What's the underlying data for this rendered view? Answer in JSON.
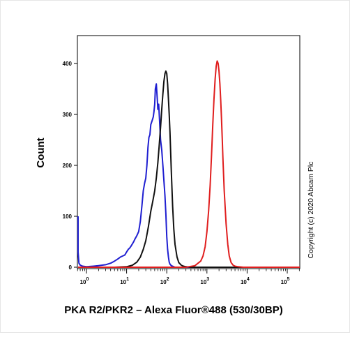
{
  "chart_data": {
    "type": "line",
    "title": "",
    "xlabel": "PKA R2/PKR2 – Alexa Fluor®488 (530/30BP)",
    "ylabel": "Count",
    "x_scale": "log",
    "xlim": [
      0.5,
      250000
    ],
    "ylim": [
      0,
      430
    ],
    "grid": false,
    "legend": "none",
    "x_ticks": [
      {
        "value": 1,
        "base": "10",
        "exp": "0"
      },
      {
        "value": 10,
        "base": "10",
        "exp": "1"
      },
      {
        "value": 100,
        "base": "10",
        "exp": "2"
      },
      {
        "value": 1000,
        "base": "10",
        "exp": "3"
      },
      {
        "value": 10000,
        "base": "10",
        "exp": "4"
      },
      {
        "value": 100000,
        "base": "10",
        "exp": "5"
      }
    ],
    "y_ticks": [
      {
        "value": 0,
        "label": "0"
      },
      {
        "value": 100,
        "label": "100"
      },
      {
        "value": 200,
        "label": "200"
      },
      {
        "value": 300,
        "label": "300"
      },
      {
        "value": 400,
        "label": "400"
      }
    ],
    "annotation": "Copyright (c) 2020 Abcam Plc",
    "series": [
      {
        "color": "#1f1fd1",
        "x": [
          0.5,
          0.55,
          0.6,
          0.65,
          0.7,
          0.8,
          1,
          1.5,
          2,
          3,
          4,
          5,
          6,
          7,
          8,
          9,
          10,
          11,
          12,
          13,
          14,
          15,
          16,
          18,
          20,
          22,
          24,
          26,
          28,
          30,
          32,
          34,
          36,
          38,
          40,
          42,
          44,
          46,
          48,
          50,
          52,
          55,
          58,
          60,
          63,
          66,
          70,
          75,
          80,
          85,
          90,
          95,
          100,
          105,
          110,
          115,
          120,
          130,
          140,
          150,
          160,
          200,
          300,
          500,
          1000,
          10000,
          250000
        ],
        "y": [
          100,
          80,
          30,
          8,
          4,
          2,
          1,
          2,
          3,
          5,
          8,
          12,
          16,
          20,
          22,
          24,
          30,
          35,
          38,
          42,
          46,
          50,
          55,
          62,
          70,
          90,
          120,
          150,
          165,
          175,
          200,
          235,
          255,
          260,
          280,
          285,
          290,
          295,
          305,
          320,
          350,
          360,
          330,
          310,
          320,
          290,
          250,
          230,
          200,
          170,
          140,
          105,
          60,
          35,
          20,
          10,
          6,
          3,
          2,
          1,
          0,
          0,
          0,
          0,
          0,
          0,
          0
        ]
      },
      {
        "color": "#111111",
        "x": [
          0.5,
          5,
          10,
          14,
          18,
          22,
          26,
          30,
          35,
          40,
          45,
          50,
          55,
          60,
          65,
          70,
          75,
          80,
          85,
          90,
          95,
          100,
          105,
          110,
          115,
          120,
          125,
          130,
          140,
          150,
          160,
          180,
          200,
          230,
          260,
          300,
          400,
          600,
          1000,
          250000
        ],
        "y": [
          0,
          0,
          1,
          4,
          10,
          20,
          35,
          52,
          80,
          110,
          130,
          150,
          175,
          205,
          240,
          275,
          310,
          340,
          365,
          380,
          385,
          380,
          360,
          330,
          300,
          265,
          225,
          185,
          120,
          75,
          45,
          20,
          9,
          4,
          2,
          1,
          0,
          0,
          0,
          0
        ]
      },
      {
        "color": "#e01e1e",
        "x": [
          0.5,
          100,
          300,
          500,
          700,
          800,
          900,
          1000,
          1100,
          1200,
          1300,
          1400,
          1500,
          1600,
          1700,
          1800,
          1900,
          2000,
          2100,
          2200,
          2300,
          2400,
          2500,
          2700,
          3000,
          3300,
          3600,
          4000,
          4500,
          5000,
          6000,
          8000,
          12000,
          250000
        ],
        "y": [
          0,
          0,
          0,
          3,
          12,
          22,
          40,
          70,
          110,
          160,
          220,
          280,
          330,
          370,
          395,
          405,
          400,
          385,
          360,
          330,
          295,
          255,
          215,
          150,
          85,
          45,
          22,
          9,
          4,
          2,
          1,
          0,
          0,
          0
        ]
      }
    ]
  }
}
